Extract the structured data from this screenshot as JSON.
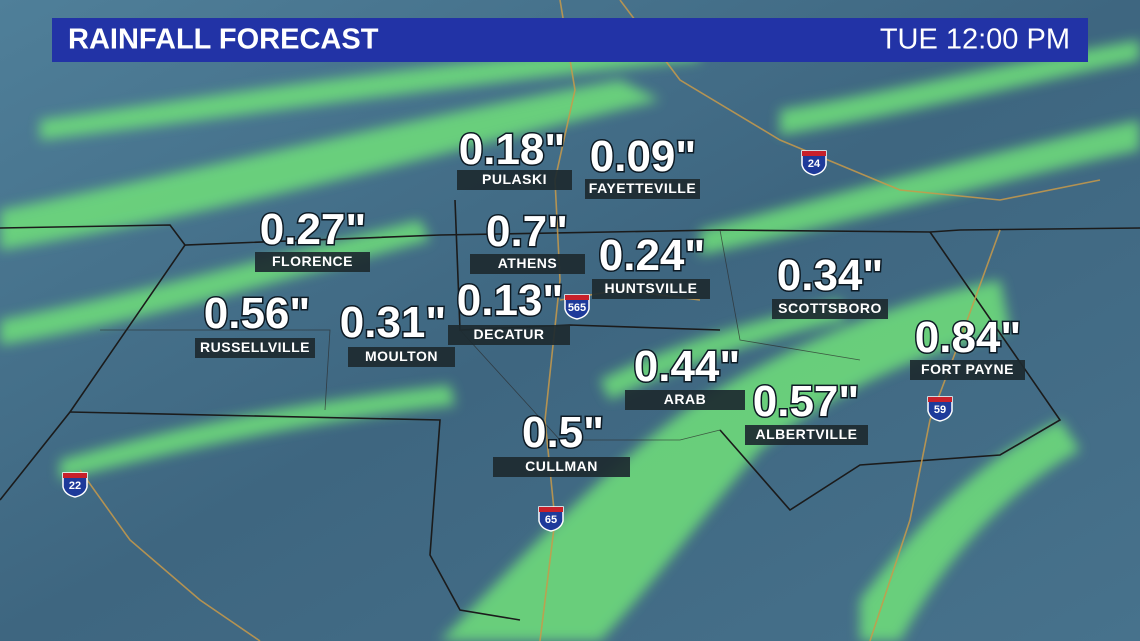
{
  "header": {
    "title": "RAINFALL FORECAST",
    "time": "TUE 12:00 PM"
  },
  "cities": [
    {
      "name": "PULASKI",
      "amount": "0.18\""
    },
    {
      "name": "FAYETTEVILLE",
      "amount": "0.09\""
    },
    {
      "name": "FLORENCE",
      "amount": "0.27\""
    },
    {
      "name": "ATHENS",
      "amount": "0.7\""
    },
    {
      "name": "HUNTSVILLE",
      "amount": "0.24\""
    },
    {
      "name": "SCOTTSBORO",
      "amount": "0.34\""
    },
    {
      "name": "RUSSELLVILLE",
      "amount": "0.56\""
    },
    {
      "name": "MOULTON",
      "amount": "0.31\""
    },
    {
      "name": "DECATUR",
      "amount": "0.13\""
    },
    {
      "name": "FORT PAYNE",
      "amount": "0.84\""
    },
    {
      "name": "ARAB",
      "amount": "0.44\""
    },
    {
      "name": "ALBERTVILLE",
      "amount": "0.57\""
    },
    {
      "name": "CULLMAN",
      "amount": "0.5\""
    }
  ],
  "interstates": [
    "24",
    "565",
    "22",
    "65",
    "59"
  ]
}
